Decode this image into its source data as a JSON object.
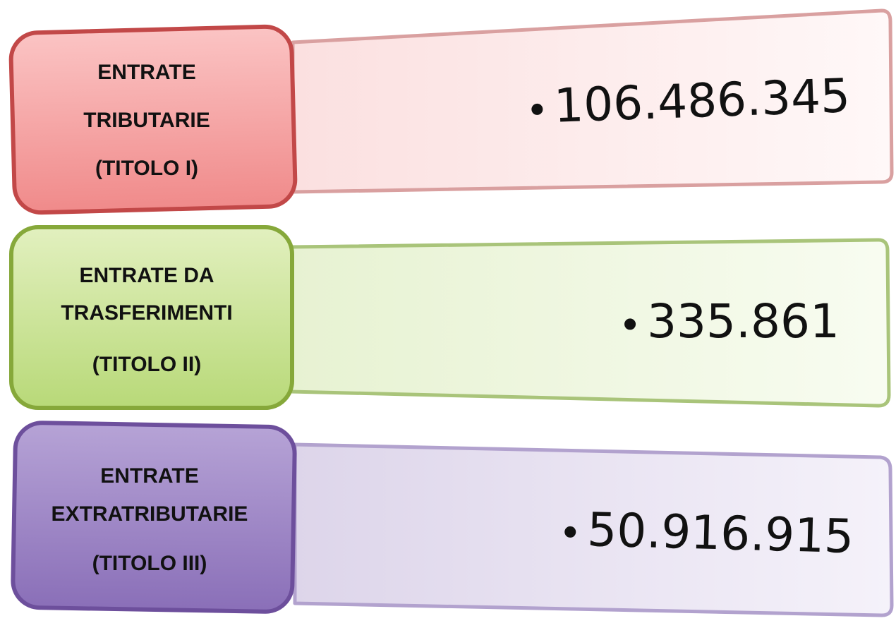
{
  "items": [
    {
      "label": [
        "ENTRATE",
        "TRIBUTARIE",
        "(TITOLO I)"
      ],
      "value": "106.486.345"
    },
    {
      "label": [
        "ENTRATE DA",
        "TRASFERIMENTI",
        "(TITOLO II)"
      ],
      "value": "335.861"
    },
    {
      "label": [
        "ENTRATE",
        "EXTRATRIBUTARIE",
        "(TITOLO III)"
      ],
      "value": "50.916.915"
    }
  ]
}
